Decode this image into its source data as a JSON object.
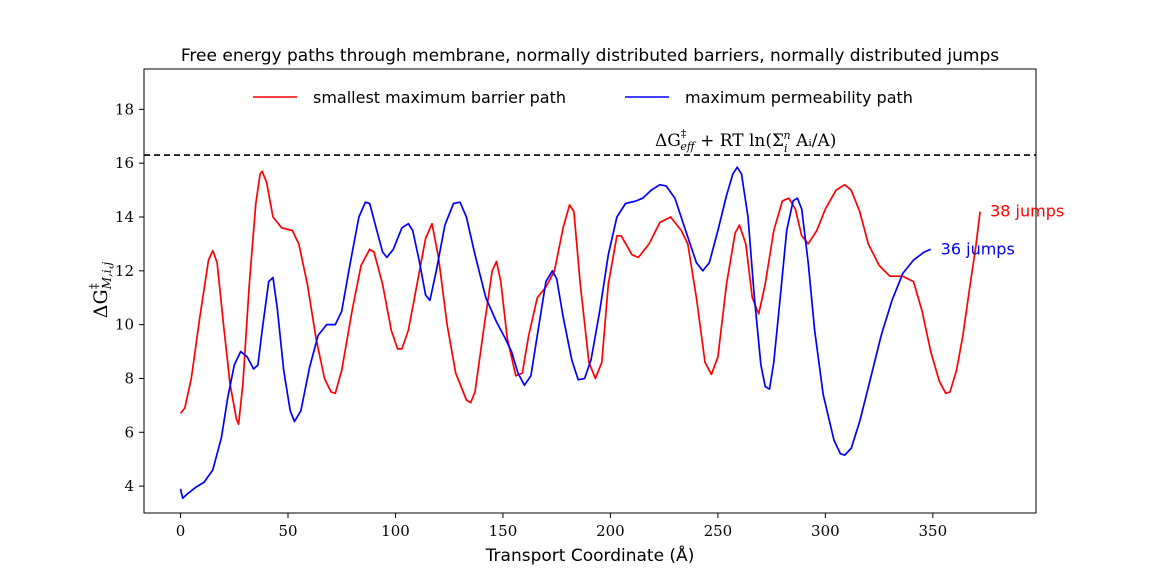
{
  "chart_data": {
    "type": "line",
    "title": "Free energy paths through membrane, normally distributed barriers, normally distributed jumps",
    "xlabel": "Transport Coordinate (Å)",
    "ylabel": {
      "base": "ΔG",
      "sup": "‡",
      "sub": "M,i,j"
    },
    "xlim": [
      -17,
      398
    ],
    "ylim": [
      3,
      19.5
    ],
    "x_ticks": [
      0,
      50,
      100,
      150,
      200,
      250,
      300,
      350
    ],
    "y_ticks": [
      4,
      6,
      8,
      10,
      12,
      14,
      16,
      18
    ],
    "grid": false,
    "legend_position": "top-center",
    "reference_line": {
      "y": 16.3,
      "style": "dashed",
      "color": "#000000",
      "label": {
        "base": "ΔG",
        "sup": "‡",
        "sub": "eff",
        "rest": " + RT ln(Σ",
        "sum_sub": "i",
        "sum_sup": "n",
        "tail": " Aᵢ/A)"
      }
    },
    "series": [
      {
        "name": "smallest maximum barrier path",
        "color": "#ff0000",
        "end_label": "38 jumps",
        "points": [
          [
            0,
            6.7
          ],
          [
            2,
            6.9
          ],
          [
            5,
            8.0
          ],
          [
            9,
            10.3
          ],
          [
            13,
            12.4
          ],
          [
            15,
            12.75
          ],
          [
            17,
            12.3
          ],
          [
            20,
            10.0
          ],
          [
            23,
            7.8
          ],
          [
            26,
            6.5
          ],
          [
            27,
            6.3
          ],
          [
            29,
            7.8
          ],
          [
            32,
            11.5
          ],
          [
            35,
            14.5
          ],
          [
            37,
            15.6
          ],
          [
            38,
            15.7
          ],
          [
            40,
            15.3
          ],
          [
            43,
            14.0
          ],
          [
            47,
            13.6
          ],
          [
            52,
            13.5
          ],
          [
            55,
            13.0
          ],
          [
            59,
            11.5
          ],
          [
            63,
            9.5
          ],
          [
            67,
            8.0
          ],
          [
            70,
            7.5
          ],
          [
            72,
            7.45
          ],
          [
            75,
            8.3
          ],
          [
            80,
            10.6
          ],
          [
            84,
            12.2
          ],
          [
            88,
            12.8
          ],
          [
            90,
            12.7
          ],
          [
            94,
            11.5
          ],
          [
            98,
            9.8
          ],
          [
            101,
            9.1
          ],
          [
            103,
            9.1
          ],
          [
            106,
            9.8
          ],
          [
            110,
            11.5
          ],
          [
            114,
            13.2
          ],
          [
            117,
            13.75
          ],
          [
            120,
            12.5
          ],
          [
            124,
            10.0
          ],
          [
            128,
            8.2
          ],
          [
            133,
            7.2
          ],
          [
            135,
            7.1
          ],
          [
            137,
            7.5
          ],
          [
            141,
            9.8
          ],
          [
            145,
            12.0
          ],
          [
            147,
            12.35
          ],
          [
            149,
            11.6
          ],
          [
            152,
            9.5
          ],
          [
            156,
            8.1
          ],
          [
            159,
            8.2
          ],
          [
            162,
            9.6
          ],
          [
            166,
            11.0
          ],
          [
            170,
            11.4
          ],
          [
            174,
            12.0
          ],
          [
            178,
            13.6
          ],
          [
            181,
            14.45
          ],
          [
            183,
            14.2
          ],
          [
            186,
            11.5
          ],
          [
            190,
            8.6
          ],
          [
            193,
            8.0
          ],
          [
            196,
            8.6
          ],
          [
            199,
            11.5
          ],
          [
            203,
            13.3
          ],
          [
            205,
            13.3
          ],
          [
            210,
            12.6
          ],
          [
            213,
            12.5
          ],
          [
            218,
            13.0
          ],
          [
            223,
            13.8
          ],
          [
            228,
            14.0
          ],
          [
            233,
            13.5
          ],
          [
            236,
            13.0
          ],
          [
            240,
            11.0
          ],
          [
            244,
            8.6
          ],
          [
            247,
            8.15
          ],
          [
            250,
            8.8
          ],
          [
            254,
            11.5
          ],
          [
            258,
            13.4
          ],
          [
            260,
            13.7
          ],
          [
            263,
            13.0
          ],
          [
            266,
            11.0
          ],
          [
            269,
            10.4
          ],
          [
            272,
            11.5
          ],
          [
            276,
            13.5
          ],
          [
            280,
            14.6
          ],
          [
            283,
            14.7
          ],
          [
            286,
            14.3
          ],
          [
            289,
            13.3
          ],
          [
            292,
            13.0
          ],
          [
            296,
            13.5
          ],
          [
            300,
            14.3
          ],
          [
            305,
            15.0
          ],
          [
            309,
            15.2
          ],
          [
            312,
            15.0
          ],
          [
            316,
            14.2
          ],
          [
            320,
            13.0
          ],
          [
            325,
            12.2
          ],
          [
            330,
            11.8
          ],
          [
            336,
            11.8
          ],
          [
            341,
            11.6
          ],
          [
            345,
            10.5
          ],
          [
            349,
            9.0
          ],
          [
            353,
            7.9
          ],
          [
            356,
            7.45
          ],
          [
            358,
            7.5
          ],
          [
            361,
            8.3
          ],
          [
            364,
            9.6
          ],
          [
            367,
            11.3
          ],
          [
            370,
            12.9
          ],
          [
            372,
            14.2
          ]
        ]
      },
      {
        "name": "maximum permeability path",
        "color": "#0000ff",
        "end_label": "36 jumps",
        "points": [
          [
            0,
            3.9
          ],
          [
            1,
            3.55
          ],
          [
            3,
            3.7
          ],
          [
            7,
            3.95
          ],
          [
            11,
            4.15
          ],
          [
            15,
            4.6
          ],
          [
            19,
            5.8
          ],
          [
            22,
            7.3
          ],
          [
            25,
            8.5
          ],
          [
            28,
            9.0
          ],
          [
            31,
            8.8
          ],
          [
            34,
            8.35
          ],
          [
            36,
            8.5
          ],
          [
            38,
            9.8
          ],
          [
            41,
            11.6
          ],
          [
            43,
            11.75
          ],
          [
            45,
            10.6
          ],
          [
            48,
            8.3
          ],
          [
            51,
            6.8
          ],
          [
            53,
            6.4
          ],
          [
            56,
            6.8
          ],
          [
            60,
            8.4
          ],
          [
            64,
            9.6
          ],
          [
            68,
            10.0
          ],
          [
            72,
            10.0
          ],
          [
            75,
            10.5
          ],
          [
            79,
            12.3
          ],
          [
            83,
            14.0
          ],
          [
            86,
            14.55
          ],
          [
            88,
            14.5
          ],
          [
            91,
            13.6
          ],
          [
            94,
            12.7
          ],
          [
            96,
            12.5
          ],
          [
            99,
            12.8
          ],
          [
            103,
            13.6
          ],
          [
            106,
            13.75
          ],
          [
            108,
            13.5
          ],
          [
            111,
            12.4
          ],
          [
            114,
            11.1
          ],
          [
            116,
            10.9
          ],
          [
            119,
            12.0
          ],
          [
            123,
            13.7
          ],
          [
            127,
            14.5
          ],
          [
            130,
            14.55
          ],
          [
            133,
            14.0
          ],
          [
            137,
            12.6
          ],
          [
            142,
            11.0
          ],
          [
            147,
            10.1
          ],
          [
            151,
            9.5
          ],
          [
            154,
            9.0
          ],
          [
            157,
            8.2
          ],
          [
            160,
            7.75
          ],
          [
            163,
            8.1
          ],
          [
            166,
            9.6
          ],
          [
            170,
            11.6
          ],
          [
            173,
            12.0
          ],
          [
            175,
            11.7
          ],
          [
            178,
            10.3
          ],
          [
            182,
            8.7
          ],
          [
            185,
            7.95
          ],
          [
            188,
            8.0
          ],
          [
            191,
            8.7
          ],
          [
            195,
            10.5
          ],
          [
            199,
            12.6
          ],
          [
            203,
            14.0
          ],
          [
            207,
            14.5
          ],
          [
            212,
            14.6
          ],
          [
            215,
            14.7
          ],
          [
            219,
            15.0
          ],
          [
            223,
            15.2
          ],
          [
            226,
            15.15
          ],
          [
            230,
            14.7
          ],
          [
            235,
            13.5
          ],
          [
            240,
            12.3
          ],
          [
            243,
            12.0
          ],
          [
            246,
            12.3
          ],
          [
            250,
            13.5
          ],
          [
            254,
            14.8
          ],
          [
            257,
            15.6
          ],
          [
            259,
            15.85
          ],
          [
            261,
            15.6
          ],
          [
            264,
            14.0
          ],
          [
            267,
            11.0
          ],
          [
            270,
            8.5
          ],
          [
            272,
            7.7
          ],
          [
            274,
            7.6
          ],
          [
            276,
            8.6
          ],
          [
            279,
            11.0
          ],
          [
            282,
            13.5
          ],
          [
            285,
            14.6
          ],
          [
            287,
            14.7
          ],
          [
            289,
            14.3
          ],
          [
            292,
            12.3
          ],
          [
            295,
            9.8
          ],
          [
            299,
            7.4
          ],
          [
            304,
            5.7
          ],
          [
            307,
            5.2
          ],
          [
            309,
            5.15
          ],
          [
            312,
            5.4
          ],
          [
            316,
            6.4
          ],
          [
            321,
            8.0
          ],
          [
            326,
            9.6
          ],
          [
            331,
            10.9
          ],
          [
            336,
            11.9
          ],
          [
            341,
            12.4
          ],
          [
            346,
            12.7
          ],
          [
            349,
            12.8
          ]
        ]
      }
    ]
  }
}
